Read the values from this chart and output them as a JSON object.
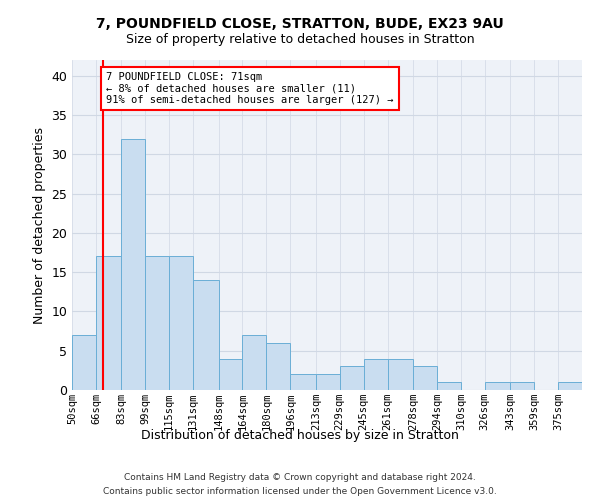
{
  "title1": "7, POUNDFIELD CLOSE, STRATTON, BUDE, EX23 9AU",
  "title2": "Size of property relative to detached houses in Stratton",
  "xlabel": "Distribution of detached houses by size in Stratton",
  "ylabel": "Number of detached properties",
  "bin_labels": [
    "50sqm",
    "66sqm",
    "83sqm",
    "99sqm",
    "115sqm",
    "131sqm",
    "148sqm",
    "164sqm",
    "180sqm",
    "196sqm",
    "213sqm",
    "229sqm",
    "245sqm",
    "261sqm",
    "278sqm",
    "294sqm",
    "310sqm",
    "326sqm",
    "343sqm",
    "359sqm",
    "375sqm"
  ],
  "bin_edges": [
    50,
    66,
    83,
    99,
    115,
    131,
    148,
    164,
    180,
    196,
    213,
    229,
    245,
    261,
    278,
    294,
    310,
    326,
    343,
    359,
    375,
    391
  ],
  "counts": [
    7,
    17,
    32,
    17,
    17,
    14,
    4,
    7,
    6,
    2,
    2,
    3,
    4,
    4,
    3,
    1,
    0,
    1,
    1,
    0,
    1
  ],
  "bar_color": "#c9ddf0",
  "bar_edge_color": "#6aaed6",
  "grid_color": "#d0d8e4",
  "background_color": "#eef2f8",
  "vline_x": 71,
  "vline_color": "red",
  "annotation_text": "7 POUNDFIELD CLOSE: 71sqm\n← 8% of detached houses are smaller (11)\n91% of semi-detached houses are larger (127) →",
  "annotation_box_color": "white",
  "annotation_box_edge": "red",
  "footer1": "Contains HM Land Registry data © Crown copyright and database right 2024.",
  "footer2": "Contains public sector information licensed under the Open Government Licence v3.0.",
  "ylim": [
    0,
    42
  ],
  "yticks": [
    0,
    5,
    10,
    15,
    20,
    25,
    30,
    35,
    40
  ]
}
